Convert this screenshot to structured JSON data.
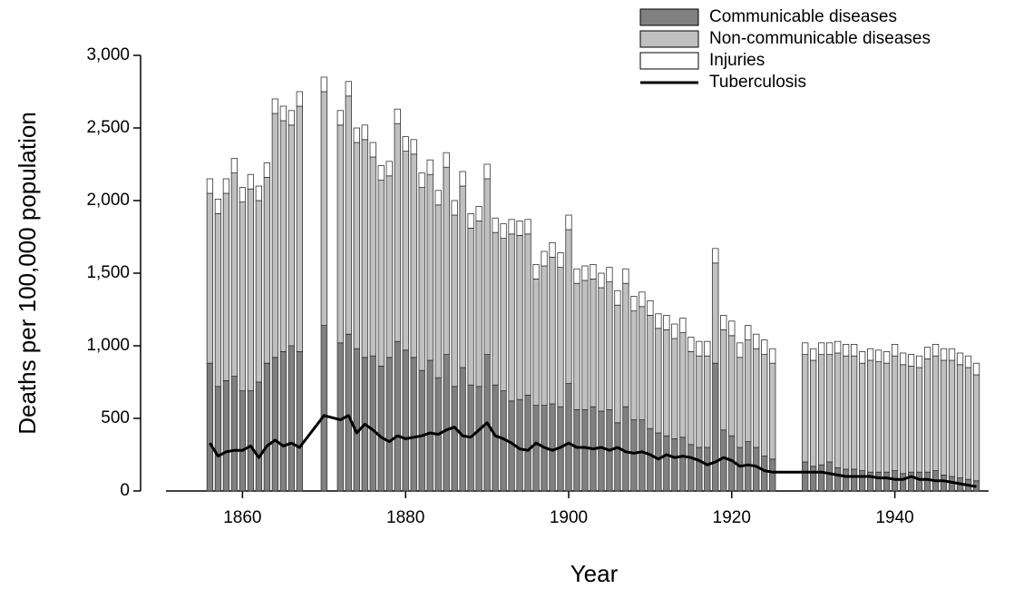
{
  "chart_data": {
    "type": "bar",
    "x_label": "Year",
    "y_label": "Deaths per 100,000 population",
    "x": [
      1856,
      1857,
      1858,
      1859,
      1860,
      1861,
      1862,
      1863,
      1864,
      1865,
      1866,
      1867,
      1870,
      1872,
      1873,
      1874,
      1875,
      1876,
      1877,
      1878,
      1879,
      1880,
      1881,
      1882,
      1883,
      1884,
      1885,
      1886,
      1887,
      1888,
      1889,
      1890,
      1891,
      1892,
      1893,
      1894,
      1895,
      1896,
      1897,
      1898,
      1899,
      1900,
      1901,
      1902,
      1903,
      1904,
      1905,
      1906,
      1907,
      1908,
      1909,
      1910,
      1911,
      1912,
      1913,
      1914,
      1915,
      1916,
      1917,
      1918,
      1919,
      1920,
      1921,
      1922,
      1923,
      1924,
      1925,
      1929,
      1930,
      1931,
      1932,
      1933,
      1934,
      1935,
      1936,
      1937,
      1938,
      1939,
      1940,
      1941,
      1942,
      1943,
      1944,
      1945,
      1946,
      1947,
      1948,
      1949,
      1950
    ],
    "series": [
      {
        "name": "Communicable diseases",
        "color": "#808080",
        "type": "bar",
        "values": [
          880,
          720,
          760,
          790,
          690,
          690,
          750,
          880,
          920,
          960,
          1000,
          960,
          1140,
          1020,
          1080,
          980,
          920,
          930,
          860,
          920,
          1030,
          970,
          920,
          830,
          900,
          780,
          940,
          720,
          850,
          730,
          720,
          940,
          730,
          690,
          620,
          630,
          660,
          590,
          590,
          600,
          580,
          740,
          560,
          560,
          580,
          550,
          560,
          470,
          580,
          490,
          490,
          430,
          400,
          380,
          360,
          370,
          320,
          300,
          300,
          880,
          420,
          380,
          300,
          340,
          300,
          240,
          220,
          200,
          170,
          180,
          200,
          160,
          150,
          150,
          140,
          130,
          130,
          130,
          140,
          120,
          130,
          130,
          130,
          140,
          110,
          100,
          90,
          80,
          70
        ]
      },
      {
        "name": "Non-communicable diseases",
        "color": "#c0c0c0",
        "type": "bar",
        "values": [
          1170,
          1190,
          1290,
          1400,
          1300,
          1390,
          1250,
          1280,
          1680,
          1590,
          1520,
          1690,
          1610,
          1500,
          1640,
          1420,
          1500,
          1370,
          1280,
          1250,
          1500,
          1370,
          1400,
          1260,
          1280,
          1190,
          1290,
          1180,
          1250,
          1080,
          1140,
          1210,
          1050,
          1050,
          1150,
          1130,
          1110,
          870,
          960,
          1010,
          960,
          1060,
          870,
          890,
          880,
          850,
          880,
          810,
          850,
          750,
          780,
          780,
          720,
          730,
          690,
          720,
          640,
          630,
          630,
          690,
          690,
          690,
          620,
          700,
          680,
          700,
          660,
          740,
          730,
          760,
          740,
          790,
          780,
          780,
          740,
          770,
          760,
          750,
          790,
          750,
          730,
          720,
          780,
          790,
          790,
          800,
          780,
          770,
          730
        ]
      },
      {
        "name": "Injuries",
        "color": "#ffffff",
        "type": "bar",
        "values": [
          100,
          100,
          100,
          100,
          100,
          100,
          100,
          100,
          100,
          100,
          100,
          100,
          100,
          100,
          100,
          100,
          100,
          100,
          100,
          100,
          100,
          100,
          100,
          100,
          100,
          100,
          100,
          100,
          100,
          100,
          100,
          100,
          100,
          100,
          100,
          100,
          100,
          100,
          100,
          100,
          100,
          100,
          100,
          100,
          100,
          100,
          100,
          100,
          100,
          100,
          100,
          100,
          100,
          100,
          100,
          100,
          100,
          100,
          100,
          100,
          100,
          100,
          100,
          100,
          100,
          100,
          100,
          80,
          80,
          80,
          80,
          80,
          80,
          80,
          80,
          80,
          80,
          80,
          80,
          80,
          80,
          80,
          80,
          80,
          80,
          80,
          80,
          80,
          80
        ]
      },
      {
        "name": "Tuberculosis",
        "color": "#000000",
        "type": "line",
        "values": [
          330,
          240,
          270,
          280,
          280,
          310,
          230,
          310,
          350,
          310,
          330,
          300,
          520,
          490,
          520,
          400,
          460,
          420,
          370,
          340,
          380,
          360,
          370,
          380,
          400,
          390,
          420,
          440,
          380,
          370,
          420,
          470,
          380,
          360,
          330,
          290,
          280,
          330,
          300,
          280,
          300,
          330,
          300,
          300,
          290,
          300,
          280,
          300,
          270,
          260,
          270,
          250,
          220,
          250,
          230,
          240,
          230,
          210,
          180,
          200,
          230,
          210,
          170,
          180,
          170,
          140,
          130,
          130,
          130,
          130,
          120,
          110,
          100,
          100,
          100,
          100,
          90,
          90,
          80,
          80,
          100,
          80,
          80,
          70,
          70,
          60,
          50,
          40,
          30
        ]
      }
    ],
    "xlim": [
      1847.5,
      1951.5
    ],
    "xticks": [
      1860,
      1880,
      1900,
      1920,
      1940
    ],
    "ylim": [
      0,
      3000
    ],
    "yticks": [
      0,
      500,
      {
        "value": 1000,
        "label": "1,000"
      },
      {
        "value": 1500,
        "label": "1,500"
      },
      {
        "value": 2000,
        "label": "2,000"
      },
      {
        "value": 2500,
        "label": "2,500"
      },
      {
        "value": 3000,
        "label": "3,000"
      }
    ],
    "grid": false,
    "legend": "top-right"
  }
}
